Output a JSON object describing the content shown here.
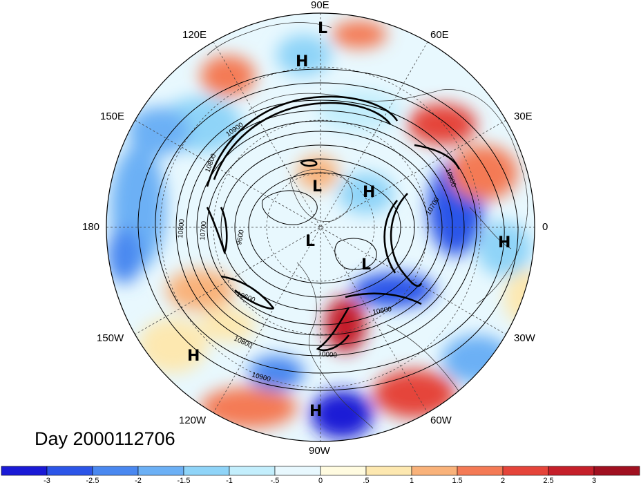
{
  "map": {
    "day_label": "Day 2000112706",
    "longitude_labels": [
      "90E",
      "60E",
      "30E",
      "0",
      "30W",
      "60W",
      "90W",
      "120W",
      "150W",
      "180",
      "150E",
      "120E"
    ],
    "pressure_centers": [
      "L",
      "H",
      "L",
      "H",
      "L",
      "L",
      "H",
      "H",
      "H"
    ],
    "contour_labels": [
      "10900",
      "10800",
      "10700",
      "9600",
      "10600",
      "10800",
      "10900",
      "10600",
      "10700",
      "10000",
      "10800",
      "10900"
    ]
  },
  "colorbar": {
    "tick_labels": [
      "-3",
      "-2.5",
      "-2",
      "-1.5",
      "-1",
      "-.5",
      "0",
      ".5",
      "1",
      "1.5",
      "2",
      "2.5",
      "3"
    ],
    "colors": [
      "#1a1ad6",
      "#2c55e8",
      "#4a88f0",
      "#6cb0f5",
      "#8fd4f8",
      "#c3eefc",
      "#e8f8fe",
      "#fffbe0",
      "#fde8b0",
      "#f9b27a",
      "#f47a55",
      "#e5443a",
      "#c51f2a",
      "#a01020"
    ]
  }
}
